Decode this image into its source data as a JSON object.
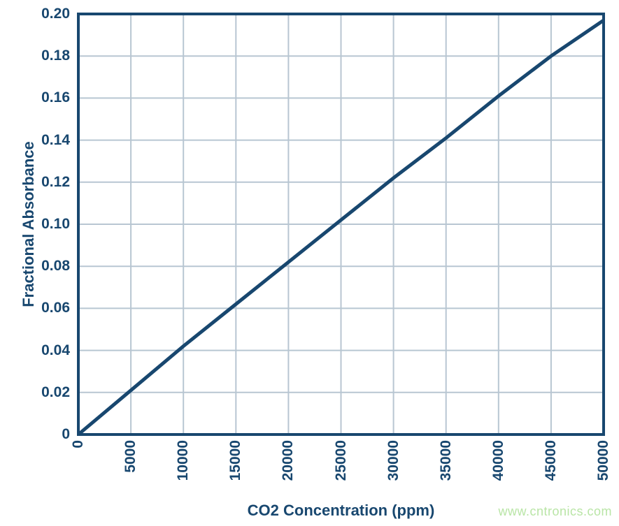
{
  "chart_data": {
    "type": "line",
    "title": "",
    "xlabel": "CO2 Concentration (ppm)",
    "ylabel": "Fractional Absorbance",
    "x": [
      0,
      5000,
      10000,
      15000,
      20000,
      25000,
      30000,
      35000,
      40000,
      45000,
      50000
    ],
    "series": [
      {
        "name": "Fractional Absorbance",
        "values": [
          0,
          0.021,
          0.042,
          0.062,
          0.082,
          0.102,
          0.122,
          0.141,
          0.161,
          0.18,
          0.197
        ]
      }
    ],
    "xlim": [
      0,
      50000
    ],
    "ylim": [
      0,
      0.2
    ],
    "x_ticks": [
      0,
      5000,
      10000,
      15000,
      20000,
      25000,
      30000,
      35000,
      40000,
      45000,
      50000
    ],
    "x_tick_labels": [
      "0",
      "5000",
      "10000",
      "15000",
      "20000",
      "25000",
      "30000",
      "35000",
      "40000",
      "45000",
      "50000"
    ],
    "y_ticks": [
      0,
      0.02,
      0.04,
      0.06,
      0.08,
      0.1,
      0.12,
      0.14,
      0.16,
      0.18,
      0.2
    ],
    "y_tick_labels": [
      "0",
      "0.02",
      "0.04",
      "0.06",
      "0.08",
      "0.10",
      "0.12",
      "0.14",
      "0.16",
      "0.18",
      "0.20"
    ],
    "grid": true,
    "legend": "none",
    "colors": {
      "line": "#18476f",
      "border": "#18476f",
      "grid": "#b8c6d2",
      "text": "#18476f",
      "background": "#ffffff"
    }
  },
  "watermark": {
    "text": "www.cntronics.com",
    "color": "#b9e5a6"
  }
}
